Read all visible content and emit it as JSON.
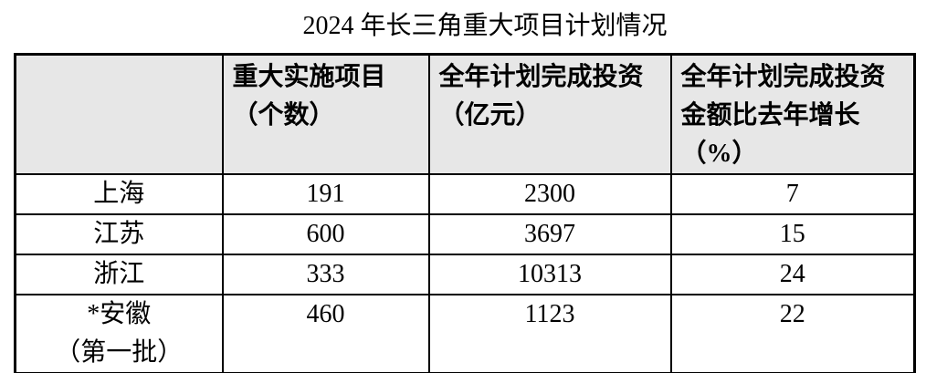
{
  "title": "2024 年长三角重大项目计划情况",
  "table": {
    "columns": {
      "region": "",
      "projects": "重大实施项目\n（个数）",
      "investment": "全年计划完成投资\n（亿元）",
      "growth": "全年计划完成投资\n金额比去年增长\n（%）"
    },
    "rows": [
      {
        "region": "上海",
        "projects": "191",
        "investment": "2300",
        "growth": "7"
      },
      {
        "region": "江苏",
        "projects": "600",
        "investment": "3697",
        "growth": "15"
      },
      {
        "region": "浙江",
        "projects": "333",
        "investment": "10313",
        "growth": "24"
      },
      {
        "region": "*安徽\n（第一批）",
        "projects": "460",
        "investment": "1123",
        "growth": "22"
      }
    ],
    "notes": {
      "bold_value_row_index": 3,
      "bold_value_column": "investment"
    }
  },
  "colors": {
    "header_bg": "#e7e7e7",
    "border": "#000000",
    "text": "#000000"
  }
}
